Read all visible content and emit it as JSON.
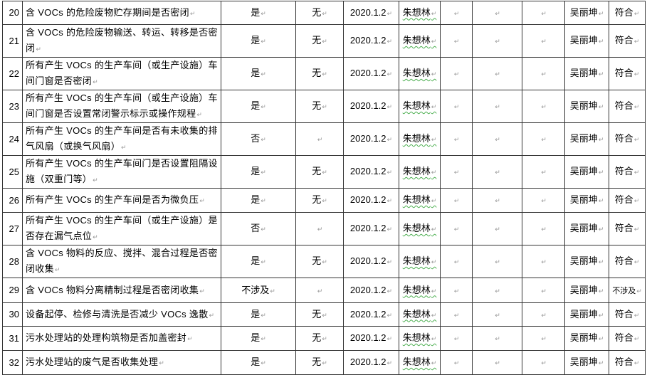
{
  "table": {
    "rows": [
      {
        "no": "20",
        "item": "含 VOCs 的危险废物贮存期间是否密闭",
        "result": "是",
        "issue": "无",
        "date": "2020.1.2",
        "inspector": "朱想林",
        "c7": "",
        "c8": "",
        "c9": "",
        "reviewer": "吴丽坤",
        "conclusion": "符合"
      },
      {
        "no": "21",
        "item": "含 VOCs 的危险废物输送、转运、转移是否密闭",
        "result": "是",
        "issue": "无",
        "date": "2020.1.2",
        "inspector": "朱想林",
        "c7": "",
        "c8": "",
        "c9": "",
        "reviewer": "吴丽坤",
        "conclusion": "符合"
      },
      {
        "no": "22",
        "item": "所有产生 VOCs 的生产车间（或生产设施）车间门窗是否密闭",
        "result": "是",
        "issue": "无",
        "date": "2020.1.2",
        "inspector": "朱想林",
        "c7": "",
        "c8": "",
        "c9": "",
        "reviewer": "吴丽坤",
        "conclusion": "符合"
      },
      {
        "no": "23",
        "item": "所有产生 VOCs 的生产车间（或生产设施）车间门窗是否设置常闭警示标示或操作规程",
        "result": "是",
        "issue": "无",
        "date": "2020.1.2",
        "inspector": "朱想林",
        "c7": "",
        "c8": "",
        "c9": "",
        "reviewer": "吴丽坤",
        "conclusion": "符合"
      },
      {
        "no": "24",
        "item": "所有产生 VOCs 的生产车间是否有未收集的排气风扇（或换气风扇）",
        "result": "否",
        "issue": "",
        "date": "2020.1.2",
        "inspector": "朱想林",
        "c7": "",
        "c8": "",
        "c9": "",
        "reviewer": "吴丽坤",
        "conclusion": "符合"
      },
      {
        "no": "25",
        "item": "所有产生 VOCs 的生产车间门是否设置阻隔设施（双重门等）",
        "result": "是",
        "issue": "无",
        "date": "2020.1.2",
        "inspector": "朱想林",
        "c7": "",
        "c8": "",
        "c9": "",
        "reviewer": "吴丽坤",
        "conclusion": "符合"
      },
      {
        "no": "26",
        "item": "所有产生 VOCs 的生产车间是否为微负压",
        "result": "是",
        "issue": "无",
        "date": "2020.1.2",
        "inspector": "朱想林",
        "c7": "",
        "c8": "",
        "c9": "",
        "reviewer": "吴丽坤",
        "conclusion": "符合"
      },
      {
        "no": "27",
        "item": "所有产生 VOCs 的生产车间（或生产设施）是否存在漏气点位",
        "result": "否",
        "issue": "",
        "date": "2020.1.2",
        "inspector": "朱想林",
        "c7": "",
        "c8": "",
        "c9": "",
        "reviewer": "吴丽坤",
        "conclusion": "符合"
      },
      {
        "no": "28",
        "item": "含 VOCs 物料的反应、搅拌、混合过程是否密闭收集",
        "result": "是",
        "issue": "无",
        "date": "2020.1.2",
        "inspector": "朱想林",
        "c7": "",
        "c8": "",
        "c9": "",
        "reviewer": "吴丽坤",
        "conclusion": "符合"
      },
      {
        "no": "29",
        "item": "含 VOCs 物料分离精制过程是否密闭收集",
        "result": "不涉及",
        "issue": "",
        "date": "2020.1.2",
        "inspector": "朱想林",
        "c7": "",
        "c8": "",
        "c9": "",
        "reviewer": "吴丽坤",
        "conclusion": "不涉及"
      },
      {
        "no": "30",
        "item": "设备起停、检修与清洗是否减少 VOCs 逸散",
        "result": "是",
        "issue": "无",
        "date": "2020.1.2",
        "inspector": "朱想林",
        "c7": "",
        "c8": "",
        "c9": "",
        "reviewer": "吴丽坤",
        "conclusion": "符合"
      },
      {
        "no": "31",
        "item": "污水处理站的处理构筑物是否加盖密封",
        "result": "是",
        "issue": "无",
        "date": "2020.1.2",
        "inspector": "朱想林",
        "c7": "",
        "c8": "",
        "c9": "",
        "reviewer": "吴丽坤",
        "conclusion": "符合"
      },
      {
        "no": "32",
        "item": "污水处理站的废气是否收集处理",
        "result": "是",
        "issue": "无",
        "date": "2020.1.2",
        "inspector": "朱想林",
        "c7": "",
        "c8": "",
        "c9": "",
        "reviewer": "吴丽坤",
        "conclusion": "符合"
      }
    ]
  }
}
